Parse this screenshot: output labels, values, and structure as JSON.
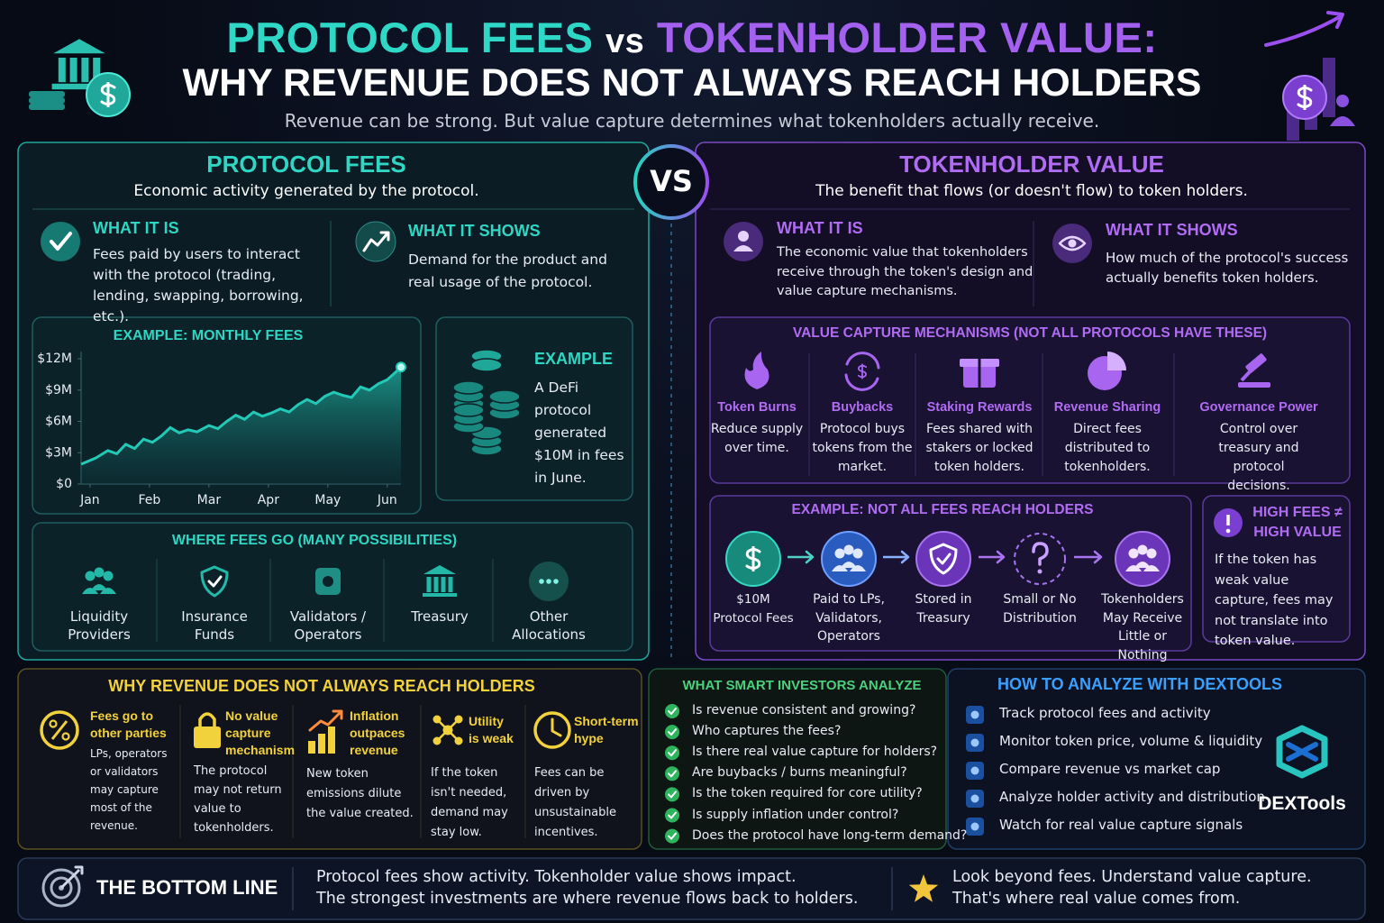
{
  "header": {
    "title_part1": "PROTOCOL FEES",
    "title_vs": "vs",
    "title_part2": "TOKENHOLDER VALUE:",
    "title_line2": "WHY REVENUE DOES NOT ALWAYS REACH HOLDERS",
    "subtitle": "Revenue can be strong. But value capture determines what tokenholders actually receive."
  },
  "vs_badge": "VS",
  "fees_panel": {
    "title": "PROTOCOL FEES",
    "subtitle": "Economic activity generated by the protocol.",
    "what_it_is": {
      "heading": "WHAT IT IS",
      "text": "Fees paid by users to interact with the protocol (trading, lending, swapping, borrowing, etc.)."
    },
    "what_it_shows": {
      "heading": "WHAT IT SHOWS",
      "text": "Demand for the product and real usage of the protocol."
    },
    "example": {
      "heading": "EXAMPLE",
      "text": "A DeFi protocol generated $10M in fees in June."
    },
    "where_fees_go": {
      "title": "WHERE FEES GO (MANY POSSIBILITIES)",
      "items": [
        "Liquidity Providers",
        "Insurance Funds",
        "Validators / Operators",
        "Treasury",
        "Other Allocations"
      ]
    }
  },
  "chart_data": {
    "type": "line",
    "title": "EXAMPLE: MONTHLY FEES",
    "color": "#22c9b6",
    "x": [
      -0.15,
      0.1,
      0.3,
      0.45,
      0.6,
      0.75,
      0.9,
      1.05,
      1.2,
      1.35,
      1.5,
      1.65,
      1.8,
      2.0,
      2.15,
      2.3,
      2.45,
      2.6,
      2.75,
      2.9,
      3.05,
      3.2,
      3.35,
      3.5,
      3.65,
      3.8,
      3.95,
      4.1,
      4.25,
      4.4,
      4.55,
      4.7,
      4.85,
      5.0,
      5.1,
      5.23
    ],
    "values": [
      1.9,
      2.5,
      3.2,
      2.9,
      3.8,
      3.4,
      4.3,
      4.0,
      4.6,
      5.4,
      4.9,
      5.2,
      5.0,
      5.6,
      5.3,
      6.0,
      6.6,
      6.2,
      6.9,
      6.5,
      6.8,
      7.2,
      6.9,
      7.6,
      8.1,
      7.7,
      8.4,
      8.8,
      8.5,
      8.3,
      9.3,
      9.0,
      9.6,
      10.0,
      10.5,
      11.2
    ],
    "xlim": [
      -0.15,
      5.23
    ],
    "xticks": [
      {
        "value": 0,
        "label": "Jan"
      },
      {
        "value": 1,
        "label": "Feb"
      },
      {
        "value": 2,
        "label": "Mar"
      },
      {
        "value": 3,
        "label": "Apr"
      },
      {
        "value": 4,
        "label": "May"
      },
      {
        "value": 5,
        "label": "Jun"
      }
    ],
    "ylim": [
      0,
      12
    ],
    "yticks": [
      {
        "value": 0,
        "label": "$0"
      },
      {
        "value": 3,
        "label": "$3M"
      },
      {
        "value": 6,
        "label": "$6M"
      },
      {
        "value": 9,
        "label": "$9M"
      },
      {
        "value": 12,
        "label": "$12M"
      }
    ]
  },
  "value_panel": {
    "title": "TOKENHOLDER VALUE",
    "subtitle": "The benefit that flows (or doesn't flow) to token holders.",
    "what_it_is": {
      "heading": "WHAT IT IS",
      "text": "The economic value that tokenholders receive through the token's design and value capture mechanisms."
    },
    "what_it_shows": {
      "heading": "WHAT IT SHOWS",
      "text": "How much of the protocol's success actually benefits token holders."
    },
    "mechanisms": {
      "title": "VALUE CAPTURE MECHANISMS (NOT ALL PROTOCOLS HAVE THESE)",
      "items": [
        {
          "name": "Token Burns",
          "text": "Reduce supply over time."
        },
        {
          "name": "Buybacks",
          "text": "Protocol buys tokens from the market."
        },
        {
          "name": "Staking Rewards",
          "text": "Fees shared with stakers or locked token holders."
        },
        {
          "name": "Revenue Sharing",
          "text": "Direct fees distributed to tokenholders."
        },
        {
          "name": "Governance Power",
          "text": "Control over treasury and protocol decisions."
        }
      ]
    },
    "flow": {
      "title": "EXAMPLE: NOT ALL FEES REACH HOLDERS",
      "nodes": [
        "$10M Protocol Fees",
        "Paid to LPs, Validators, Operators",
        "Stored in Treasury",
        "Small or No Distribution",
        "Tokenholders May Receive Little or Nothing"
      ]
    },
    "high_fees": {
      "heading": "HIGH FEES ≠ HIGH VALUE",
      "text": "If the token has weak value capture, fees may not translate into token value."
    }
  },
  "why_revenue": {
    "title": "WHY REVENUE DOES NOT ALWAYS REACH HOLDERS",
    "reasons": [
      {
        "heading": "Fees go to other parties",
        "text": "LPs, operators or validators may capture most of the revenue."
      },
      {
        "heading": "No value capture mechanism",
        "text": "The protocol may not return value to tokenholders."
      },
      {
        "heading": "Inflation outpaces revenue",
        "text": "New token emissions dilute the value created."
      },
      {
        "heading": "Utility is weak",
        "text": "If the token isn't needed, demand may stay low."
      },
      {
        "heading": "Short-term hype",
        "text": "Fees can be driven by unsustainable incentives."
      }
    ]
  },
  "smart_investors": {
    "title": "WHAT SMART INVESTORS ANALYZE",
    "items": [
      "Is revenue consistent and growing?",
      "Who captures the fees?",
      "Is there real value capture for holders?",
      "Are buybacks / burns meaningful?",
      "Is the token required for core utility?",
      "Is supply inflation under control?",
      "Does the protocol have long-term demand?"
    ]
  },
  "dextools": {
    "title": "HOW TO ANALYZE WITH DEXTOOLS",
    "items": [
      "Track protocol fees and activity",
      "Monitor token price, volume & liquidity",
      "Compare revenue vs market cap",
      "Analyze holder activity and distribution",
      "Watch for real value capture signals"
    ],
    "logo": "DEXTools"
  },
  "bottom_line": {
    "heading": "THE BOTTOM LINE",
    "text_1": "Protocol fees show activity. Tokenholder value shows impact.",
    "text_2": "The strongest investments are where revenue flows back to holders.",
    "text_3": "Look beyond fees. Understand value capture.",
    "text_4": "That's where real value comes from."
  }
}
